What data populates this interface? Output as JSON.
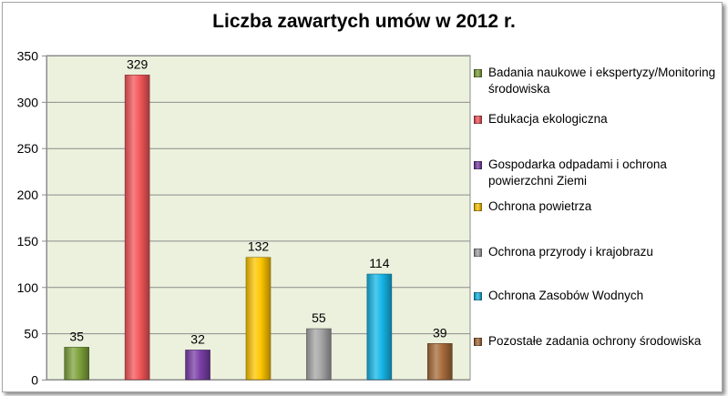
{
  "chart_data": {
    "type": "bar",
    "title": "Liczba zawartych umów w 2012 r.",
    "xlabel": "",
    "ylabel": "",
    "ylim": [
      0,
      350
    ],
    "yticks": [
      0,
      50,
      100,
      150,
      200,
      250,
      300,
      350
    ],
    "grid": true,
    "legend_position": "right",
    "series": [
      {
        "name": "Badania naukowe i ekspertyzy/Monitoring środowiska",
        "value": 35,
        "color": "#7fa33c"
      },
      {
        "name": "Edukacja ekologiczna",
        "value": 329,
        "color": "#f4575b"
      },
      {
        "name": "Gospodarka odpadami i ochrona powierzchni Ziemi",
        "value": 32,
        "color": "#7a3fa8"
      },
      {
        "name": "Ochrona powietrza",
        "value": 132,
        "color": "#ffc600"
      },
      {
        "name": "Ochrona przyrody i krajobrazu",
        "value": 55,
        "color": "#a6a6a6"
      },
      {
        "name": "Ochrona Zasobów Wodnych",
        "value": 114,
        "color": "#17b7e8"
      },
      {
        "name": "Pozostałe zadania ochrony środowiska",
        "value": 39,
        "color": "#a86c3c"
      }
    ],
    "plot_background": "#ebf1dd"
  }
}
